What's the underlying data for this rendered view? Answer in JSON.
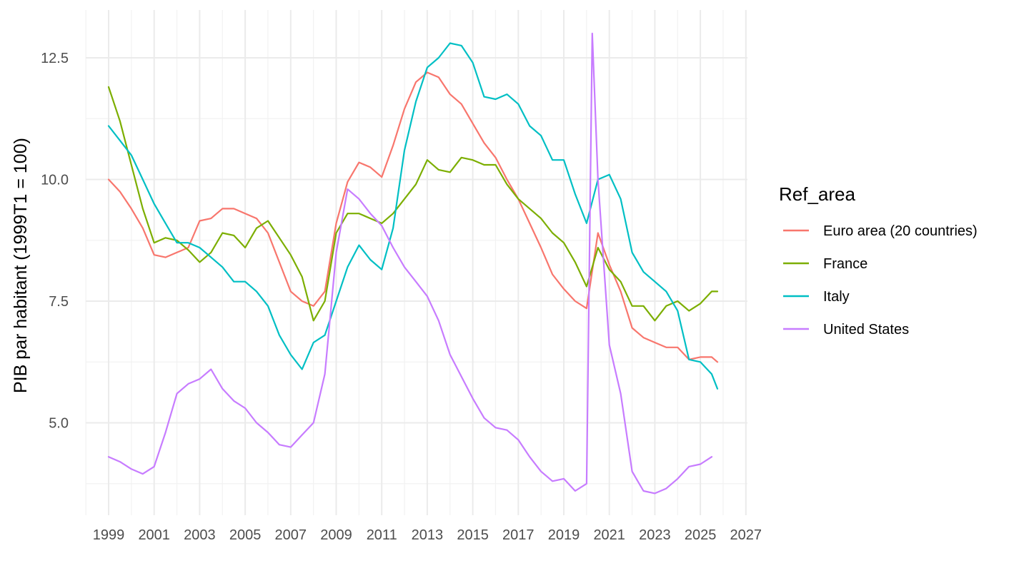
{
  "chart_data": {
    "type": "line",
    "title": "",
    "xlabel": "",
    "ylabel": "PIB par habitant (1999T1 = 100)",
    "xlim": [
      1998,
      2027.1
    ],
    "ylim": [
      3.3,
      13.5
    ],
    "x_ticks": [
      "1999",
      "2001",
      "2003",
      "2005",
      "2007",
      "2009",
      "2011",
      "2013",
      "2015",
      "2017",
      "2019",
      "2021",
      "2023",
      "2025",
      "2027"
    ],
    "y_ticks": [
      "5.0",
      "7.5",
      "10.0",
      "12.5"
    ],
    "grid": true,
    "legend": {
      "title": "Ref_area",
      "position": "right"
    },
    "series": [
      {
        "name": "Euro area (20 countries)",
        "color": "#F8766D",
        "points": [
          [
            1999.0,
            10.0
          ],
          [
            1999.5,
            9.75
          ],
          [
            2000.0,
            9.4
          ],
          [
            2000.5,
            9.0
          ],
          [
            2001.0,
            8.45
          ],
          [
            2001.5,
            8.4
          ],
          [
            2002.0,
            8.5
          ],
          [
            2002.5,
            8.6
          ],
          [
            2003.0,
            9.15
          ],
          [
            2003.5,
            9.2
          ],
          [
            2004.0,
            9.4
          ],
          [
            2004.5,
            9.4
          ],
          [
            2005.0,
            9.3
          ],
          [
            2005.5,
            9.2
          ],
          [
            2006.0,
            8.9
          ],
          [
            2006.5,
            8.3
          ],
          [
            2007.0,
            7.7
          ],
          [
            2007.5,
            7.5
          ],
          [
            2008.0,
            7.4
          ],
          [
            2008.5,
            7.7
          ],
          [
            2009.0,
            9.1
          ],
          [
            2009.5,
            9.95
          ],
          [
            2010.0,
            10.35
          ],
          [
            2010.5,
            10.25
          ],
          [
            2011.0,
            10.05
          ],
          [
            2011.5,
            10.7
          ],
          [
            2012.0,
            11.45
          ],
          [
            2012.5,
            12.0
          ],
          [
            2013.0,
            12.2
          ],
          [
            2013.5,
            12.1
          ],
          [
            2014.0,
            11.75
          ],
          [
            2014.5,
            11.55
          ],
          [
            2015.0,
            11.15
          ],
          [
            2015.5,
            10.75
          ],
          [
            2016.0,
            10.45
          ],
          [
            2016.5,
            10.0
          ],
          [
            2017.0,
            9.6
          ],
          [
            2017.5,
            9.1
          ],
          [
            2018.0,
            8.6
          ],
          [
            2018.5,
            8.05
          ],
          [
            2019.0,
            7.75
          ],
          [
            2019.5,
            7.5
          ],
          [
            2020.0,
            7.35
          ],
          [
            2020.5,
            8.9
          ],
          [
            2021.0,
            8.25
          ],
          [
            2021.5,
            7.7
          ],
          [
            2022.0,
            6.95
          ],
          [
            2022.5,
            6.75
          ],
          [
            2023.0,
            6.65
          ],
          [
            2023.5,
            6.55
          ],
          [
            2024.0,
            6.55
          ],
          [
            2024.5,
            6.3
          ],
          [
            2025.0,
            6.35
          ],
          [
            2025.5,
            6.35
          ],
          [
            2025.75,
            6.25
          ]
        ]
      },
      {
        "name": "France",
        "color": "#7CAE00",
        "points": [
          [
            1999.0,
            11.9
          ],
          [
            1999.5,
            11.2
          ],
          [
            2000.0,
            10.3
          ],
          [
            2000.5,
            9.4
          ],
          [
            2001.0,
            8.7
          ],
          [
            2001.5,
            8.8
          ],
          [
            2002.0,
            8.75
          ],
          [
            2002.5,
            8.55
          ],
          [
            2003.0,
            8.3
          ],
          [
            2003.5,
            8.5
          ],
          [
            2004.0,
            8.9
          ],
          [
            2004.5,
            8.85
          ],
          [
            2005.0,
            8.6
          ],
          [
            2005.5,
            9.0
          ],
          [
            2006.0,
            9.15
          ],
          [
            2006.5,
            8.8
          ],
          [
            2007.0,
            8.45
          ],
          [
            2007.5,
            8.0
          ],
          [
            2008.0,
            7.1
          ],
          [
            2008.5,
            7.5
          ],
          [
            2009.0,
            8.9
          ],
          [
            2009.5,
            9.3
          ],
          [
            2010.0,
            9.3
          ],
          [
            2010.5,
            9.2
          ],
          [
            2011.0,
            9.1
          ],
          [
            2011.5,
            9.3
          ],
          [
            2012.0,
            9.6
          ],
          [
            2012.5,
            9.9
          ],
          [
            2013.0,
            10.4
          ],
          [
            2013.5,
            10.2
          ],
          [
            2014.0,
            10.15
          ],
          [
            2014.5,
            10.45
          ],
          [
            2015.0,
            10.4
          ],
          [
            2015.5,
            10.3
          ],
          [
            2016.0,
            10.3
          ],
          [
            2016.5,
            9.9
          ],
          [
            2017.0,
            9.6
          ],
          [
            2017.5,
            9.4
          ],
          [
            2018.0,
            9.2
          ],
          [
            2018.5,
            8.9
          ],
          [
            2019.0,
            8.7
          ],
          [
            2019.5,
            8.3
          ],
          [
            2020.0,
            7.8
          ],
          [
            2020.5,
            8.6
          ],
          [
            2021.0,
            8.15
          ],
          [
            2021.5,
            7.9
          ],
          [
            2022.0,
            7.4
          ],
          [
            2022.5,
            7.4
          ],
          [
            2023.0,
            7.1
          ],
          [
            2023.5,
            7.4
          ],
          [
            2024.0,
            7.5
          ],
          [
            2024.5,
            7.3
          ],
          [
            2025.0,
            7.45
          ],
          [
            2025.5,
            7.7
          ],
          [
            2025.75,
            7.7
          ]
        ]
      },
      {
        "name": "Italy",
        "color": "#00BFC4",
        "points": [
          [
            1999.0,
            11.1
          ],
          [
            1999.5,
            10.8
          ],
          [
            2000.0,
            10.5
          ],
          [
            2000.5,
            10.0
          ],
          [
            2001.0,
            9.5
          ],
          [
            2001.5,
            9.1
          ],
          [
            2002.0,
            8.7
          ],
          [
            2002.5,
            8.7
          ],
          [
            2003.0,
            8.6
          ],
          [
            2003.5,
            8.4
          ],
          [
            2004.0,
            8.2
          ],
          [
            2004.5,
            7.9
          ],
          [
            2005.0,
            7.9
          ],
          [
            2005.5,
            7.7
          ],
          [
            2006.0,
            7.4
          ],
          [
            2006.5,
            6.8
          ],
          [
            2007.0,
            6.4
          ],
          [
            2007.5,
            6.1
          ],
          [
            2008.0,
            6.65
          ],
          [
            2008.5,
            6.8
          ],
          [
            2009.0,
            7.5
          ],
          [
            2009.5,
            8.2
          ],
          [
            2010.0,
            8.65
          ],
          [
            2010.5,
            8.35
          ],
          [
            2011.0,
            8.15
          ],
          [
            2011.5,
            9.0
          ],
          [
            2012.0,
            10.6
          ],
          [
            2012.5,
            11.6
          ],
          [
            2013.0,
            12.3
          ],
          [
            2013.5,
            12.5
          ],
          [
            2014.0,
            12.8
          ],
          [
            2014.5,
            12.75
          ],
          [
            2015.0,
            12.4
          ],
          [
            2015.5,
            11.7
          ],
          [
            2016.0,
            11.65
          ],
          [
            2016.5,
            11.75
          ],
          [
            2017.0,
            11.55
          ],
          [
            2017.5,
            11.1
          ],
          [
            2018.0,
            10.9
          ],
          [
            2018.5,
            10.4
          ],
          [
            2019.0,
            10.4
          ],
          [
            2019.5,
            9.7
          ],
          [
            2020.0,
            9.1
          ],
          [
            2020.5,
            10.0
          ],
          [
            2021.0,
            10.1
          ],
          [
            2021.5,
            9.6
          ],
          [
            2022.0,
            8.5
          ],
          [
            2022.5,
            8.1
          ],
          [
            2023.0,
            7.9
          ],
          [
            2023.5,
            7.7
          ],
          [
            2024.0,
            7.3
          ],
          [
            2024.5,
            6.3
          ],
          [
            2025.0,
            6.25
          ],
          [
            2025.5,
            6.0
          ],
          [
            2025.75,
            5.7
          ]
        ]
      },
      {
        "name": "United States",
        "color": "#C77CFF",
        "points": [
          [
            1999.0,
            4.3
          ],
          [
            1999.5,
            4.2
          ],
          [
            2000.0,
            4.05
          ],
          [
            2000.5,
            3.95
          ],
          [
            2001.0,
            4.1
          ],
          [
            2001.5,
            4.8
          ],
          [
            2002.0,
            5.6
          ],
          [
            2002.5,
            5.8
          ],
          [
            2003.0,
            5.9
          ],
          [
            2003.5,
            6.1
          ],
          [
            2004.0,
            5.7
          ],
          [
            2004.5,
            5.45
          ],
          [
            2005.0,
            5.3
          ],
          [
            2005.5,
            5.0
          ],
          [
            2006.0,
            4.8
          ],
          [
            2006.5,
            4.55
          ],
          [
            2007.0,
            4.5
          ],
          [
            2007.5,
            4.75
          ],
          [
            2008.0,
            5.0
          ],
          [
            2008.5,
            6.0
          ],
          [
            2009.0,
            8.5
          ],
          [
            2009.5,
            9.8
          ],
          [
            2010.0,
            9.6
          ],
          [
            2010.5,
            9.3
          ],
          [
            2011.0,
            9.05
          ],
          [
            2011.5,
            8.6
          ],
          [
            2012.0,
            8.2
          ],
          [
            2012.5,
            7.9
          ],
          [
            2013.0,
            7.6
          ],
          [
            2013.5,
            7.1
          ],
          [
            2014.0,
            6.4
          ],
          [
            2014.5,
            5.95
          ],
          [
            2015.0,
            5.5
          ],
          [
            2015.5,
            5.1
          ],
          [
            2016.0,
            4.9
          ],
          [
            2016.5,
            4.85
          ],
          [
            2017.0,
            4.65
          ],
          [
            2017.5,
            4.3
          ],
          [
            2018.0,
            4.0
          ],
          [
            2018.5,
            3.8
          ],
          [
            2019.0,
            3.85
          ],
          [
            2019.5,
            3.6
          ],
          [
            2020.0,
            3.75
          ],
          [
            2020.25,
            13.0
          ],
          [
            2020.5,
            10.0
          ],
          [
            2021.0,
            6.6
          ],
          [
            2021.5,
            5.6
          ],
          [
            2022.0,
            4.0
          ],
          [
            2022.5,
            3.6
          ],
          [
            2023.0,
            3.55
          ],
          [
            2023.5,
            3.65
          ],
          [
            2024.0,
            3.85
          ],
          [
            2024.5,
            4.1
          ],
          [
            2025.0,
            4.15
          ],
          [
            2025.5,
            4.3
          ]
        ]
      }
    ]
  }
}
